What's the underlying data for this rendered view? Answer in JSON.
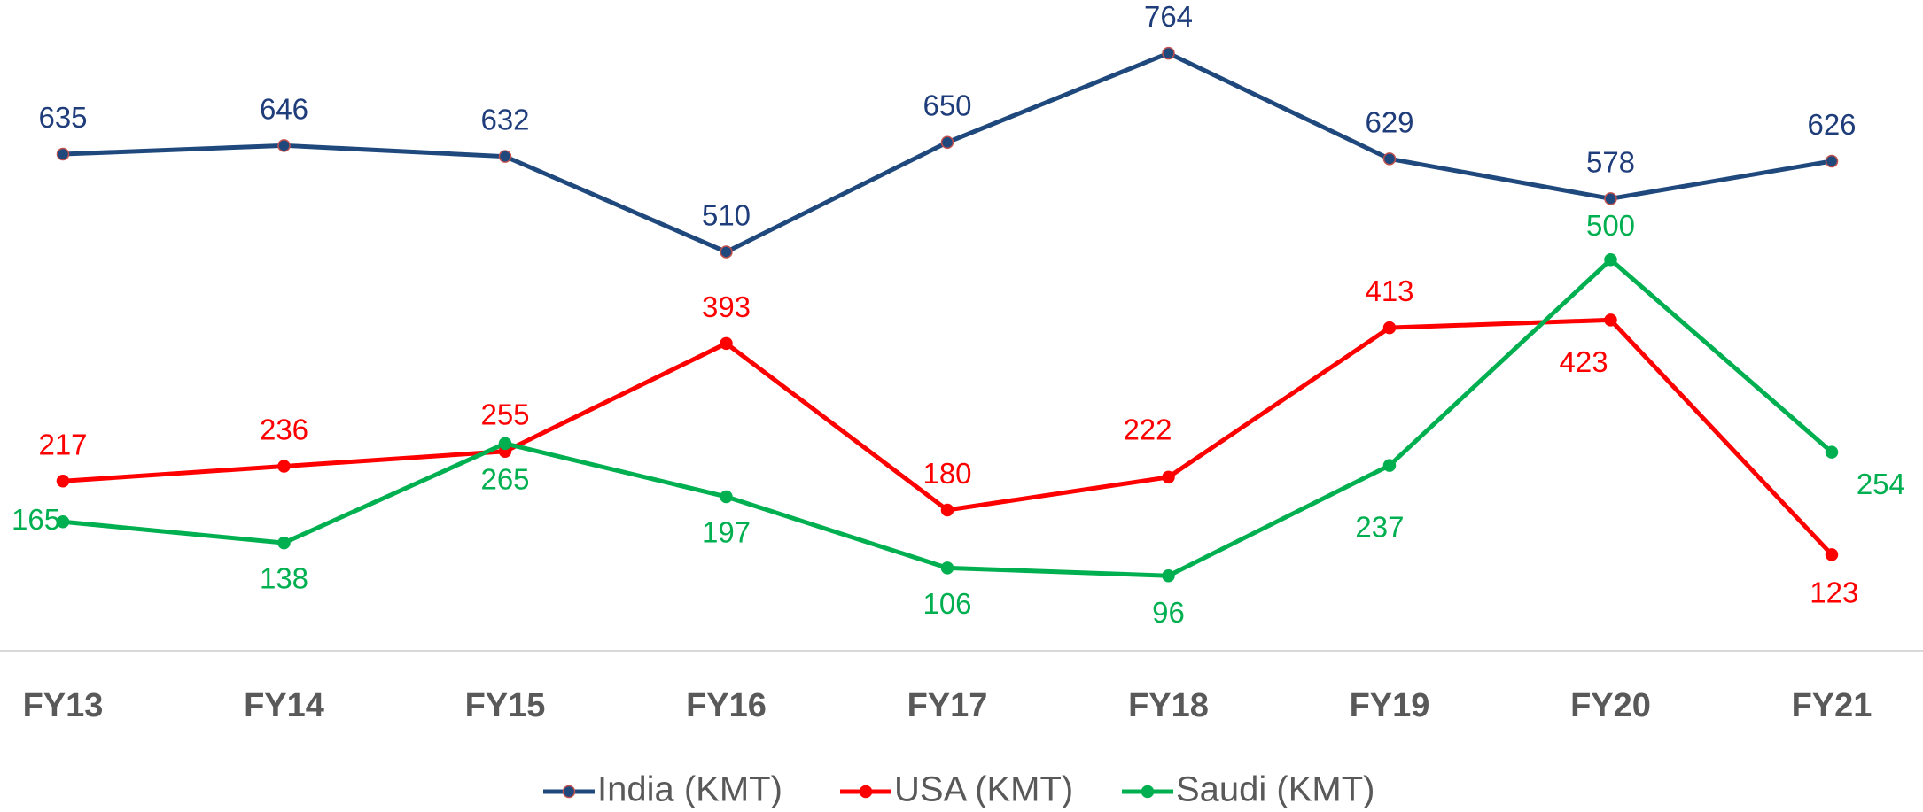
{
  "chart_data": {
    "type": "line",
    "categories": [
      "FY13",
      "FY14",
      "FY15",
      "FY16",
      "FY17",
      "FY18",
      "FY19",
      "FY20",
      "FY21"
    ],
    "series": [
      {
        "name": "India (KMT)",
        "color": "#1f497d",
        "values": [
          635,
          646,
          632,
          510,
          650,
          764,
          629,
          578,
          626
        ]
      },
      {
        "name": "USA (KMT)",
        "color": "#ff0000",
        "values": [
          217,
          236,
          255,
          393,
          180,
          222,
          413,
          423,
          123
        ]
      },
      {
        "name": "Saudi (KMT)",
        "color": "#00b050",
        "values": [
          165,
          138,
          265,
          197,
          106,
          96,
          237,
          500,
          254
        ]
      }
    ],
    "ylim": [
      0,
      832
    ],
    "legend": "bottom"
  }
}
